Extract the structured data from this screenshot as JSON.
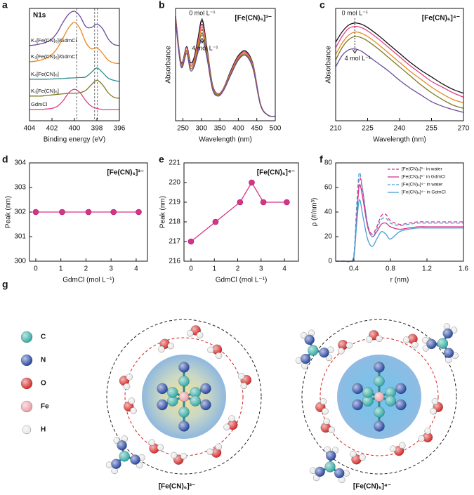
{
  "chart_data": [
    {
      "type": "line",
      "panel": "a",
      "title": "N1s",
      "xlabel": "Binding energy (eV)",
      "xlim": [
        404,
        396
      ],
      "xticks": [
        404,
        402,
        400,
        398,
        396
      ],
      "ylim": [
        0,
        10
      ],
      "vlines": [
        399.8,
        398.2,
        397.95
      ],
      "x": [
        404,
        403.5,
        403,
        402.5,
        402,
        401.5,
        401,
        400.5,
        400,
        399.5,
        399,
        398.5,
        398,
        397.5,
        397,
        396.5,
        396
      ],
      "series": [
        {
          "name": "K₄[Fe(CN)₆]/GdmCl",
          "color": "#6a4c9c",
          "values": [
            6.7,
            6.75,
            6.85,
            7.0,
            7.3,
            7.9,
            8.8,
            9.5,
            9.75,
            9.3,
            8.4,
            8.3,
            8.6,
            8.2,
            7.3,
            6.8,
            6.7
          ]
        },
        {
          "name": "K₃[Fe(CN)₆]/GdmCl",
          "color": "#e8891e",
          "values": [
            5.25,
            5.3,
            5.4,
            5.6,
            5.9,
            6.5,
            7.4,
            8.3,
            8.75,
            8.2,
            7.0,
            6.4,
            6.5,
            6.0,
            5.4,
            5.15,
            5.1
          ]
        },
        {
          "name": "K₄[Fe(CN)₆]",
          "color": "#2e8b8b",
          "values": [
            3.7,
            3.7,
            3.7,
            3.7,
            3.72,
            3.74,
            3.76,
            3.8,
            3.82,
            3.85,
            3.9,
            4.3,
            4.7,
            4.3,
            3.8,
            3.6,
            3.5
          ]
        },
        {
          "name": "K₃[Fe(CN)₆]",
          "color": "#7a7a1e",
          "values": [
            2.2,
            2.2,
            2.2,
            2.25,
            2.3,
            2.35,
            2.4,
            2.45,
            2.45,
            2.5,
            2.7,
            3.2,
            3.6,
            3.2,
            2.5,
            2.1,
            2.0
          ]
        },
        {
          "name": "GdmCl",
          "color": "#e0408a",
          "values": [
            1.0,
            1.0,
            1.0,
            1.05,
            1.1,
            1.3,
            1.8,
            2.5,
            2.8,
            2.5,
            1.8,
            1.3,
            1.1,
            1.0,
            1.0,
            1.0,
            1.0
          ]
        }
      ]
    },
    {
      "type": "line",
      "panel": "b",
      "title": "[Fe(CN)₆]³⁻",
      "xlabel": "Wavelength (nm)",
      "ylabel": "Absorbance",
      "annotations": [
        "0 mol L⁻¹",
        "4 mol L⁻¹"
      ],
      "xlim": [
        230,
        500
      ],
      "xticks": [
        250,
        300,
        350,
        400,
        450,
        500
      ],
      "ylim": [
        0,
        10
      ],
      "x": [
        230,
        245,
        260,
        270,
        280,
        290,
        302,
        315,
        330,
        345,
        360,
        380,
        400,
        420,
        440,
        460,
        480,
        500
      ],
      "series": [
        {
          "color": "#111111",
          "values": [
            9.3,
            5.2,
            6.6,
            5.2,
            5.6,
            7.2,
            9.0,
            6.5,
            3.2,
            2.4,
            2.9,
            4.5,
            5.8,
            6.2,
            5.0,
            1.5,
            0.5,
            0.4
          ]
        },
        {
          "color": "#e0408a",
          "values": [
            9.2,
            5.1,
            6.5,
            5.0,
            5.4,
            6.9,
            8.6,
            6.3,
            3.1,
            2.4,
            2.9,
            4.4,
            5.7,
            6.1,
            4.9,
            1.5,
            0.5,
            0.4
          ]
        },
        {
          "color": "#e8891e",
          "values": [
            9.1,
            5.0,
            6.3,
            4.9,
            5.2,
            6.6,
            8.2,
            6.1,
            3.0,
            2.3,
            2.8,
            4.3,
            5.6,
            6.0,
            4.8,
            1.5,
            0.5,
            0.4
          ]
        },
        {
          "color": "#7a7a1e",
          "values": [
            9.0,
            4.9,
            6.2,
            4.7,
            5.0,
            6.3,
            7.8,
            5.9,
            2.9,
            2.3,
            2.8,
            4.2,
            5.5,
            5.9,
            4.7,
            1.4,
            0.5,
            0.4
          ]
        },
        {
          "color": "#6a4c9c",
          "values": [
            8.9,
            4.8,
            6.0,
            4.5,
            4.8,
            6.0,
            7.3,
            5.6,
            2.8,
            2.2,
            2.7,
            4.1,
            5.4,
            5.8,
            4.6,
            1.4,
            0.5,
            0.4
          ]
        }
      ]
    },
    {
      "type": "line",
      "panel": "c",
      "title": "[Fe(CN)₆]⁴⁻",
      "xlabel": "Wavelength (nm)",
      "ylabel": "Absorbance",
      "annotations": [
        "0 mol L⁻¹",
        "4 mol L⁻¹"
      ],
      "xlim": [
        210,
        270
      ],
      "xticks": [
        210,
        225,
        240,
        255,
        270
      ],
      "ylim": [
        0,
        10
      ],
      "x": [
        210,
        213,
        216,
        219,
        222,
        225,
        230,
        235,
        240,
        245,
        250,
        255,
        260,
        265,
        270
      ],
      "series": [
        {
          "color": "#111111",
          "values": [
            7.0,
            7.9,
            8.5,
            8.7,
            8.6,
            8.3,
            7.6,
            6.8,
            6.0,
            5.2,
            4.5,
            3.9,
            3.3,
            2.8,
            2.45
          ]
        },
        {
          "color": "#e0408a",
          "values": [
            6.5,
            7.5,
            8.2,
            8.4,
            8.3,
            8.0,
            7.3,
            6.5,
            5.7,
            4.9,
            4.2,
            3.5,
            3.0,
            2.5,
            2.1
          ]
        },
        {
          "color": "#e8891e",
          "values": [
            5.9,
            6.9,
            7.6,
            7.9,
            7.8,
            7.5,
            6.8,
            6.0,
            5.2,
            4.4,
            3.7,
            3.0,
            2.4,
            1.9,
            1.6
          ]
        },
        {
          "color": "#7a7a1e",
          "values": [
            5.4,
            6.5,
            7.2,
            7.5,
            7.4,
            7.1,
            6.4,
            5.6,
            4.8,
            4.0,
            3.2,
            2.5,
            1.9,
            1.4,
            1.1
          ]
        },
        {
          "color": "#6a4c9c",
          "values": [
            4.8,
            5.8,
            6.3,
            6.4,
            6.2,
            5.8,
            5.1,
            4.4,
            3.6,
            2.9,
            2.3,
            1.7,
            1.3,
            1.0,
            0.75
          ]
        }
      ]
    },
    {
      "type": "line",
      "panel": "d",
      "title": "[Fe(CN)₆]³⁻",
      "xlabel": "GdmCl (mol L⁻¹)",
      "ylabel": "Peak (nm)",
      "markers": true,
      "xlim": [
        -0.25,
        4.45
      ],
      "xticks": [
        0,
        1,
        2,
        3,
        4
      ],
      "ylim": [
        300,
        304
      ],
      "yticks": [
        300,
        301,
        302,
        303,
        304
      ],
      "x": [
        0,
        1.05,
        2.1,
        3.1,
        4.1
      ],
      "series": [
        {
          "color": "#d6338a",
          "values": [
            302,
            302,
            302,
            302,
            302
          ]
        }
      ]
    },
    {
      "type": "line",
      "panel": "e",
      "title": "[Fe(CN)₆]⁴⁻",
      "xlabel": "GdmCl (mol L⁻¹)",
      "ylabel": "Peak (nm)",
      "markers": true,
      "xlim": [
        -0.3,
        4.6
      ],
      "xticks": [
        0,
        1,
        2,
        3,
        4
      ],
      "ylim": [
        216,
        221
      ],
      "yticks": [
        216,
        217,
        218,
        219,
        220,
        221
      ],
      "x": [
        0,
        1.05,
        2.1,
        2.6,
        3.1,
        4.1
      ],
      "series": [
        {
          "color": "#d6338a",
          "values": [
            217,
            218,
            219,
            220,
            219,
            219
          ]
        }
      ]
    },
    {
      "type": "line",
      "panel": "f",
      "xlabel": "r (nm)",
      "ylabel": "ρ (#/nm³)",
      "legend": "upper right",
      "xlim": [
        0.2,
        1.6
      ],
      "xticks": [
        0.4,
        0.8,
        1.2,
        1.6
      ],
      "ylim": [
        0,
        80
      ],
      "yticks": [
        0,
        20,
        40,
        60,
        80
      ],
      "x": [
        0.2,
        0.3,
        0.36,
        0.4,
        0.43,
        0.46,
        0.5,
        0.55,
        0.6,
        0.65,
        0.7,
        0.75,
        0.8,
        0.9,
        1.0,
        1.1,
        1.2,
        1.4,
        1.6
      ],
      "series": [
        {
          "name": "[Fe(CN)₆]³⁻ in water",
          "color": "#d6338a",
          "dashed": true,
          "values": [
            0,
            0,
            0,
            5,
            40,
            68,
            55,
            30,
            22,
            28,
            37,
            38,
            33,
            30,
            31,
            32,
            32,
            32,
            32
          ]
        },
        {
          "name": "[Fe(CN)₆]³⁻ in GdmCl",
          "color": "#d6338a",
          "dashed": false,
          "values": [
            0,
            0,
            0,
            4,
            35,
            62,
            50,
            28,
            20,
            24,
            30,
            31,
            28,
            26,
            27,
            28,
            28,
            28,
            28
          ]
        },
        {
          "name": "[Fe(CN)₆]⁴⁻ in water",
          "color": "#4a9fd0",
          "dashed": true,
          "values": [
            0,
            0,
            0,
            6,
            45,
            72,
            56,
            30,
            20,
            26,
            34,
            35,
            31,
            29,
            30,
            31,
            31,
            31,
            31
          ]
        },
        {
          "name": "[Fe(CN)₆]⁴⁻ in GdmCl",
          "color": "#4a9fd0",
          "dashed": false,
          "values": [
            0,
            0,
            0,
            3,
            30,
            50,
            36,
            18,
            12,
            18,
            24,
            22,
            18,
            24,
            26,
            27,
            27,
            27,
            27
          ]
        }
      ]
    }
  ],
  "diagram": {
    "panel": "g",
    "legend": [
      {
        "label": "C",
        "color": "#2aa6a0"
      },
      {
        "label": "N",
        "color": "#1f3f9e"
      },
      {
        "label": "O",
        "color": "#d42020"
      },
      {
        "label": "Fe",
        "color": "#e89aa4"
      },
      {
        "label": "H",
        "color": "#e6e6e6"
      }
    ],
    "captions": [
      "[Fe(CN)₆]³⁻",
      "[Fe(CN)₆]⁴⁻"
    ]
  }
}
